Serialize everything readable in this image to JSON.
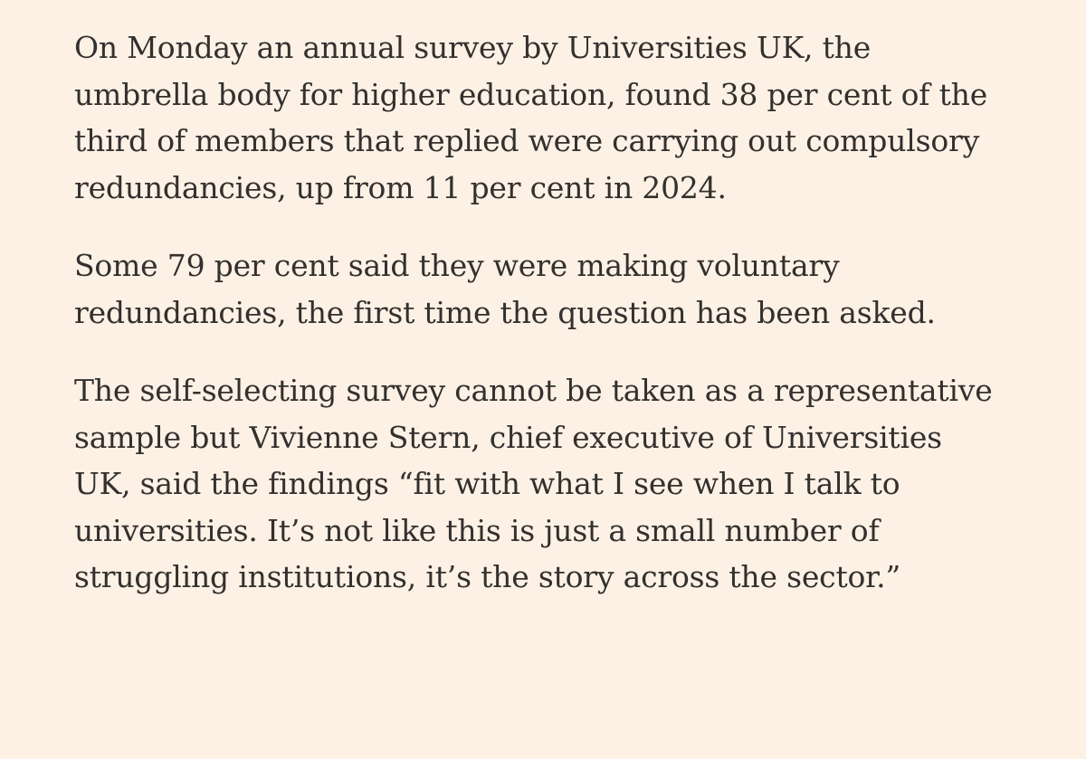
{
  "article": {
    "paragraphs": [
      {
        "lines": [
          "On Monday an annual survey by Universities UK, the",
          "umbrella body for higher education, found 38 per cent of the",
          "third of members that replied were carrying out compulsory",
          "redundancies, up from 11 per cent in 2024."
        ]
      },
      {
        "lines": [
          "Some 79 per cent said they were making voluntary",
          "redundancies, the first time the question has been asked."
        ]
      },
      {
        "lines": [
          "The self-selecting survey cannot be taken as a representative",
          "sample but Vivienne Stern, chief executive of Universities",
          "UK, said the findings “fit with what I see when I talk to",
          "universities. It’s not like this is just a small number of",
          "struggling institutions, it’s the story across the sector.”"
        ]
      }
    ]
  }
}
